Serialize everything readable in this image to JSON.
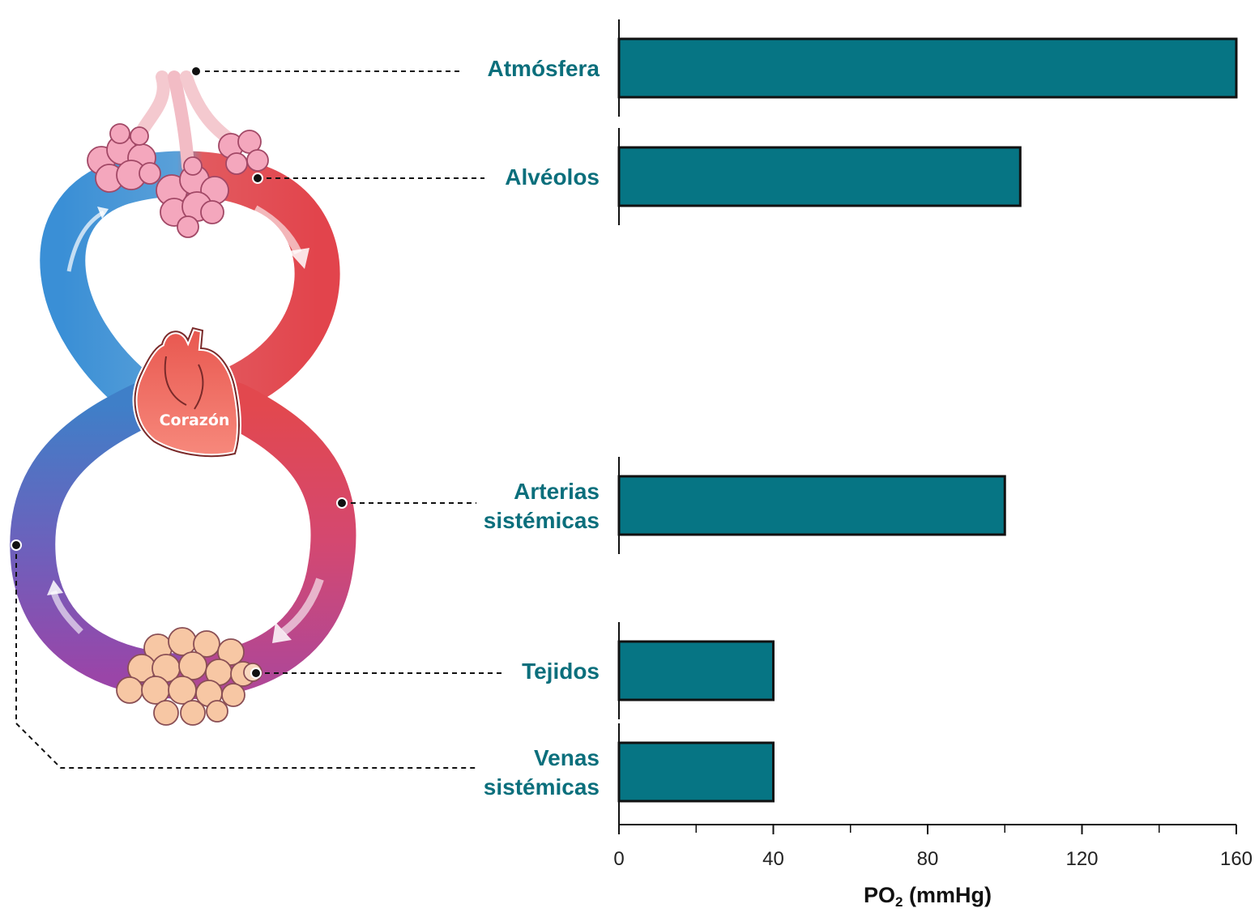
{
  "diagram": {
    "heart_label": "Corazón"
  },
  "colors": {
    "bar_fill": "#067584",
    "bar_stroke": "#111111",
    "label_color": "#0b6f7c",
    "venous_blue": "#3a8fd6",
    "arterial_red": "#e24a4f",
    "systemic_purple": "#9a4aa6",
    "alveoli_pink": "#f4a7bd",
    "tissue_peach": "#f7c7a4",
    "heart_red": "#ef6f63"
  },
  "chart_data": {
    "type": "bar",
    "orientation": "horizontal",
    "categories": [
      [
        "Atmósfera"
      ],
      [
        "Alvéolos"
      ],
      [
        "Arterias",
        "sistémicas"
      ],
      [
        "Tejidos"
      ],
      [
        "Venas",
        "sistémicas"
      ]
    ],
    "values": [
      160,
      104,
      100,
      40,
      40
    ],
    "xlim": [
      0,
      160
    ],
    "major_ticks": [
      0,
      40,
      80,
      120,
      160
    ],
    "minor_ticks": [
      20,
      60,
      100,
      140
    ],
    "xlabel": {
      "main": "PO",
      "sub": "2",
      "rest": " (mmHg)"
    },
    "title": "",
    "legend": "none",
    "grid": false
  }
}
